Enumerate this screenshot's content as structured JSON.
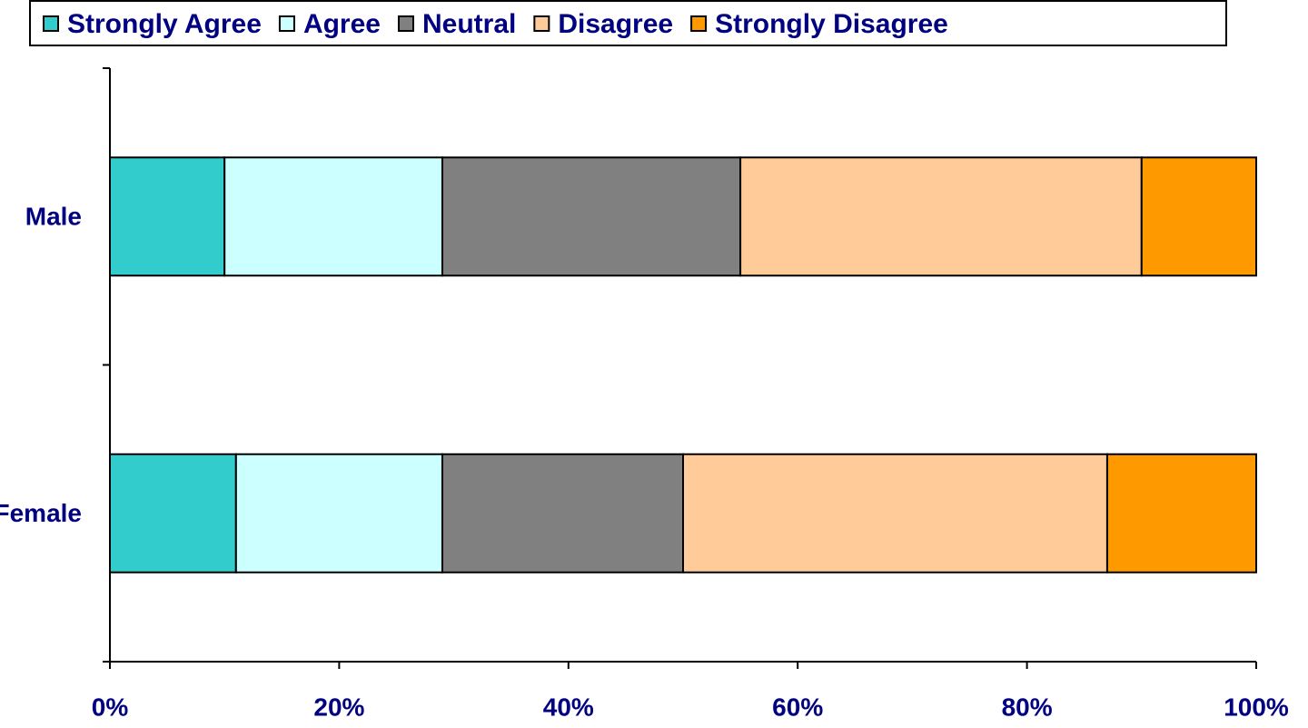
{
  "chart_data": {
    "type": "stacked-bar-horizontal",
    "categories": [
      "Male",
      "Female"
    ],
    "series": [
      {
        "name": "Strongly Agree",
        "color": "#33CCCC",
        "values": [
          10,
          11
        ]
      },
      {
        "name": "Agree",
        "color": "#CCFFFF",
        "values": [
          19,
          18
        ]
      },
      {
        "name": "Neutral",
        "color": "#808080",
        "values": [
          26,
          21
        ]
      },
      {
        "name": "Disagree",
        "color": "#FFCC99",
        "values": [
          35,
          37
        ]
      },
      {
        "name": "Strongly Disagree",
        "color": "#FF9900",
        "values": [
          10,
          13
        ]
      }
    ],
    "xlim": [
      0,
      100
    ],
    "xticks": [
      {
        "value": 0,
        "label": "0%"
      },
      {
        "value": 20,
        "label": "20%"
      },
      {
        "value": 40,
        "label": "40%"
      },
      {
        "value": 60,
        "label": "60%"
      },
      {
        "value": 80,
        "label": "80%"
      },
      {
        "value": 100,
        "label": "100%"
      }
    ],
    "legend": "top"
  }
}
